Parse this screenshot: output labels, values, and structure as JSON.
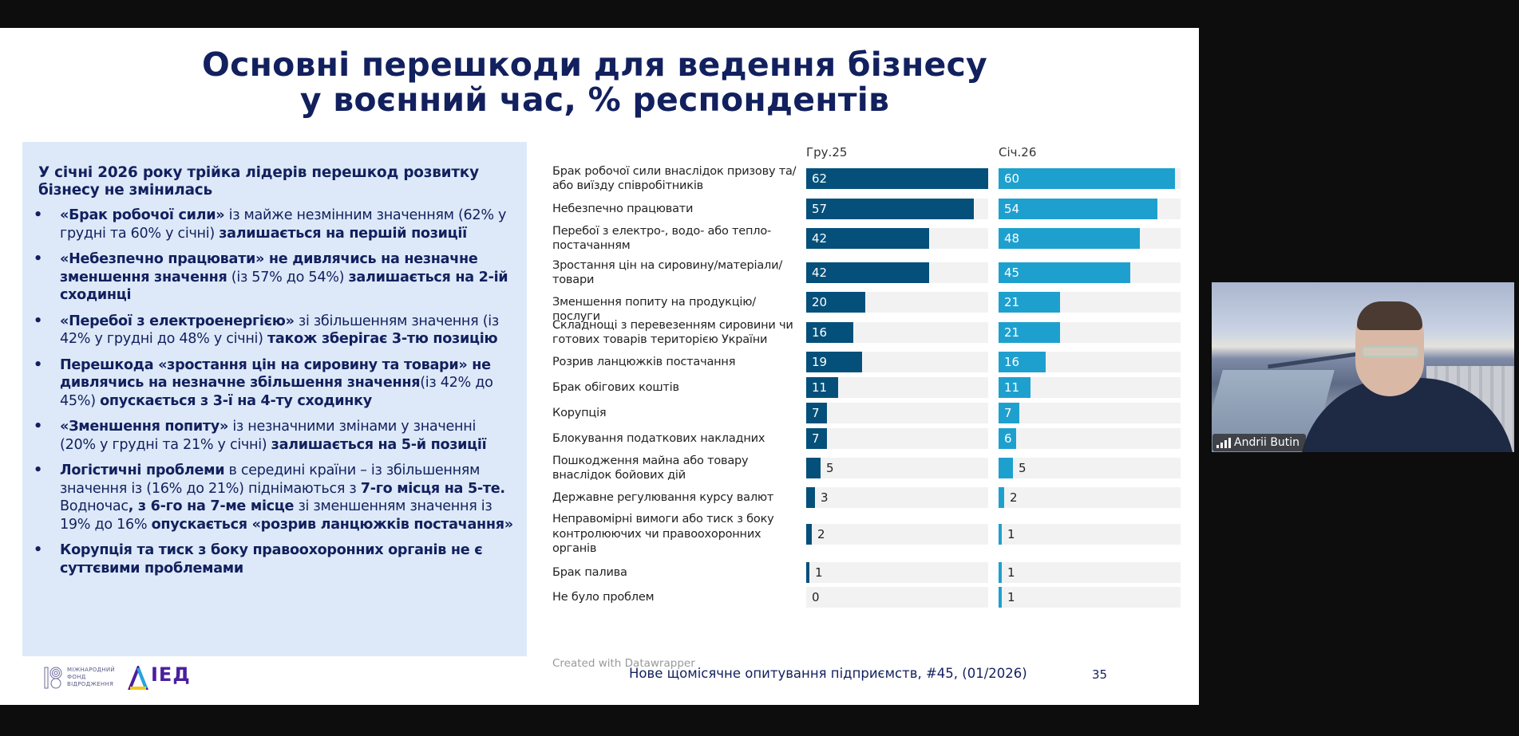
{
  "slide": {
    "title_line1": "Основні перешкоди для ведення бізнесу",
    "title_line2": "у воєнний час, % респондентів",
    "footer_source": "Нове щомісячне опитування підприємств, #45, (01/2026)",
    "page_number": "35",
    "logos": {
      "irf_lines": [
        "МІЖНАРОДНИЙ",
        "ФОНД",
        "ВІДРОДЖЕННЯ"
      ],
      "ied_text": "ІЕД"
    }
  },
  "panel": {
    "heading": "У січні 2026 року трійка лідерів перешкод розвитку бізнесу не змінилась",
    "bullets": [
      [
        {
          "t": "«Брак робочої сили»",
          "b": true
        },
        {
          "t": " із майже незмінним значенням (62% у грудні та 60% у січні) ",
          "b": false
        },
        {
          "t": "залишається на першій позиції",
          "b": true
        }
      ],
      [
        {
          "t": "«Небезпечно працювати» не дивлячись на незначне зменшення значення",
          "b": true
        },
        {
          "t": " (із 57% до 54%) ",
          "b": false
        },
        {
          "t": "залишається на 2-ій сходинці",
          "b": true
        }
      ],
      [
        {
          "t": "«Перебої з електроенергією»",
          "b": true
        },
        {
          "t": " зі збільшенням значення (із 42% у грудні до 48% у січні) ",
          "b": false
        },
        {
          "t": "також зберігає 3-тю позицію",
          "b": true
        }
      ],
      [
        {
          "t": "Перешкода «зростання цін на сировину та товари» не дивлячись на незначне збільшення значення",
          "b": true
        },
        {
          "t": "(із 42% до 45%) ",
          "b": false
        },
        {
          "t": "опускається з 3-ї на 4-ту сходинку",
          "b": true
        }
      ],
      [
        {
          "t": "«Зменшення попиту»",
          "b": true
        },
        {
          "t": " із незначними змінами у значенні (20% у грудні та 21% у січні) ",
          "b": false
        },
        {
          "t": "залишається на 5-й позиції",
          "b": true
        }
      ],
      [
        {
          "t": "Логістичні проблеми",
          "b": true
        },
        {
          "t": " в середині країни – із збільшенням значення із (16% до 21%) піднімаються з ",
          "b": false
        },
        {
          "t": "7-го місця на 5-те.",
          "b": true
        },
        {
          "t": " Водночас",
          "b": false
        },
        {
          "t": ", з 6-го на 7-ме місце",
          "b": true
        },
        {
          "t": " зі зменшенням значення із 19% до 16% ",
          "b": false
        },
        {
          "t": "опускається «розрив ланцюжків постачання»",
          "b": true
        }
      ],
      [
        {
          "t": "Корупція та тиск з боку правоохоронних органів не є суттєвими проблемами",
          "b": true
        }
      ]
    ]
  },
  "chart_data": {
    "type": "bar",
    "orientation": "horizontal",
    "layout": "small-multiples",
    "title": "Основні перешкоди для ведення бізнесу у воєнний час, % респондентів",
    "xlabel": "",
    "ylabel": "",
    "xlim": [
      0,
      62
    ],
    "grid": false,
    "credit": "Created with Datawrapper",
    "categories": [
      "Брак робочої сили внаслідок призову та/ або виїзду співробітників",
      "Небезпечно працювати",
      "Перебої з електро-, водо- або тепло-постачанням",
      "Зростання цін на сировину/матеріали/ товари",
      "Зменшення попиту на продукцію/послуги",
      "Складнощі з перевезенням сировини чи готових товарів територією України",
      "Розрив ланцюжків постачання",
      "Брак обігових коштів",
      "Корупція",
      "Блокування податкових накладних",
      "Пошкодження майна або товару внаслідок бойових дій",
      "Державне регулювання курсу валют",
      "Неправомірні вимоги або тиск з боку контролюючих чи правоохоронних органів",
      "Брак палива",
      "Не було проблем"
    ],
    "series": [
      {
        "name": "Гру.25",
        "color": "#04507a",
        "values": [
          62,
          57,
          42,
          42,
          20,
          16,
          19,
          11,
          7,
          7,
          5,
          3,
          2,
          1,
          0
        ]
      },
      {
        "name": "Січ.26",
        "color": "#1ea0cf",
        "values": [
          60,
          54,
          48,
          45,
          21,
          21,
          16,
          11,
          7,
          6,
          5,
          2,
          1,
          1,
          1
        ]
      }
    ]
  },
  "webcam": {
    "participant_name": "Andrii Butin",
    "signal_icon": "signal-bars-icon"
  }
}
